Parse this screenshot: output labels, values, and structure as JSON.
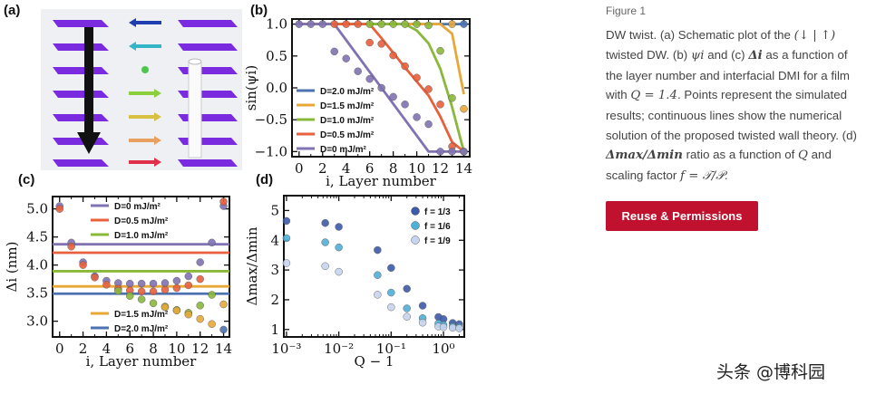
{
  "figure": {
    "panel_labels": [
      "(a)",
      "(b)",
      "(c)",
      "(d)"
    ]
  },
  "caption": {
    "figure_number": "Figure 1",
    "text_parts": [
      "DW twist. (a) Schematic plot of the ",
      "(↓ | ↑)",
      " twisted DW. (b) ",
      "ψi",
      " and (c) ",
      "Δi",
      " as a function of the layer number and interfacial DMI for a film with ",
      "Q = 1.4",
      ". Points represent the simulated results; continuous lines show the numerical solution of the proposed twisted wall theory. (d) ",
      "Δmax/Δmin",
      " ratio as a function of ",
      "Q",
      " and scaling factor ",
      "f = 𝒯/𝒫",
      "."
    ]
  },
  "reuse_button": "Reuse & Permissions",
  "watermark": "头条 @博科园",
  "colors": {
    "D0": "#8172b2",
    "D05": "#e8603c",
    "D10": "#8ab83a",
    "D15": "#e8a838",
    "D20": "#4c72b0",
    "f13": "#3d5aa8",
    "f16": "#4fb0d8",
    "f19": "#c7d4ef",
    "button": "#c0122f",
    "plate": "#8a2be2"
  },
  "chart_data": [
    {
      "id": "b",
      "type": "line",
      "xlabel": "i, Layer number",
      "ylabel": "sin(ψi)",
      "xlim": [
        -0.6,
        14.5
      ],
      "ylim": [
        -1.08,
        1.08
      ],
      "xticks": [
        0,
        2,
        4,
        6,
        8,
        10,
        12,
        14
      ],
      "yticks": [
        -1.0,
        -0.5,
        0.0,
        0.5,
        1.0
      ],
      "ytick_labels": [
        "−1.0",
        "−0.5",
        "0.0",
        "0.5",
        "1.0"
      ],
      "legend_position": "lower-left",
      "series": [
        {
          "name": "D=2.0 mJ/m²",
          "color": "#4c72b0",
          "line_x": [
            0,
            14
          ],
          "line_y": [
            1,
            1
          ],
          "points": [
            [
              14,
              1
            ]
          ]
        },
        {
          "name": "D=1.5 mJ/m²",
          "color": "#e8a838",
          "line_x": [
            0,
            12,
            13,
            14
          ],
          "line_y": [
            1,
            1,
            0.85,
            -0.1
          ],
          "points": [
            [
              13,
              1
            ],
            [
              14,
              -0.33
            ]
          ]
        },
        {
          "name": "D=1.0 mJ/m²",
          "color": "#8ab83a",
          "line_x": [
            0,
            9,
            10,
            11,
            12,
            13,
            14
          ],
          "line_y": [
            1,
            1,
            0.9,
            0.7,
            0.3,
            -0.3,
            -1
          ],
          "points": [
            [
              6,
              1
            ],
            [
              7,
              1
            ],
            [
              8,
              1
            ],
            [
              9,
              1
            ],
            [
              10,
              1
            ],
            [
              11,
              0.98
            ],
            [
              12,
              0.58
            ],
            [
              13,
              -0.16
            ],
            [
              14,
              -1
            ]
          ]
        },
        {
          "name": "D=0.5 mJ/m²",
          "color": "#e8603c",
          "line_x": [
            0,
            6,
            7,
            8,
            9,
            10,
            11,
            12,
            13,
            14
          ],
          "line_y": [
            1,
            1,
            0.78,
            0.55,
            0.32,
            0.1,
            -0.12,
            -0.45,
            -0.85,
            -1
          ],
          "points": [
            [
              3,
              1
            ],
            [
              4,
              1
            ],
            [
              5,
              1
            ],
            [
              6,
              0.71
            ],
            [
              7,
              0.69
            ],
            [
              8,
              0.51
            ],
            [
              9,
              0.34
            ],
            [
              10,
              0.16
            ],
            [
              11,
              -0.02
            ],
            [
              12,
              -0.26
            ],
            [
              13,
              -0.92
            ]
          ]
        },
        {
          "name": "D=0 mJ/m²",
          "color": "#8172b2",
          "line_x": [
            0,
            3,
            11,
            14
          ],
          "line_y": [
            1,
            1,
            -1,
            -1
          ],
          "points": [
            [
              0,
              1
            ],
            [
              1,
              1
            ],
            [
              2,
              1
            ],
            [
              3,
              0.57
            ],
            [
              4,
              0.46
            ],
            [
              5,
              0.26
            ],
            [
              6,
              0.14
            ],
            [
              7,
              0
            ],
            [
              8,
              -0.14
            ],
            [
              9,
              -0.26
            ],
            [
              10,
              -0.46
            ],
            [
              11,
              -0.57
            ],
            [
              12,
              -1
            ],
            [
              13,
              -1
            ],
            [
              14,
              -1
            ]
          ]
        }
      ]
    },
    {
      "id": "c",
      "type": "line",
      "xlabel": "i, Layer number",
      "ylabel": "Δi (nm)",
      "xlim": [
        -0.6,
        14.5
      ],
      "ylim": [
        2.72,
        5.22
      ],
      "xticks": [
        0,
        2,
        4,
        6,
        8,
        10,
        12,
        14
      ],
      "yticks": [
        3.0,
        3.5,
        4.0,
        4.5,
        5.0
      ],
      "ytick_labels": [
        "3.0",
        "3.5",
        "4.0",
        "4.5",
        "5.0"
      ],
      "legend_position": "top-left and bottom-left",
      "series": [
        {
          "name": "D=0 mJ/m²",
          "color": "#8172b2",
          "line_x": [
            -0.6,
            14.5
          ],
          "line_y": [
            4.37,
            4.37
          ],
          "points": [
            [
              0,
              5.05
            ],
            [
              1,
              4.4
            ],
            [
              2,
              4.05
            ],
            [
              3,
              3.8
            ],
            [
              4,
              3.72
            ],
            [
              5,
              3.68
            ],
            [
              6,
              3.67
            ],
            [
              7,
              3.67
            ],
            [
              8,
              3.67
            ],
            [
              9,
              3.68
            ],
            [
              10,
              3.72
            ],
            [
              11,
              3.8
            ],
            [
              12,
              4.05
            ],
            [
              13,
              4.4
            ],
            [
              14,
              5.05
            ]
          ]
        },
        {
          "name": "D=0.5 mJ/m²",
          "color": "#e8603c",
          "line_x": [
            -0.6,
            14.5
          ],
          "line_y": [
            4.22,
            4.22
          ],
          "points": [
            [
              0,
              5.0
            ],
            [
              1,
              4.33
            ],
            [
              2,
              4.0
            ],
            [
              3,
              3.78
            ],
            [
              4,
              3.65
            ],
            [
              5,
              3.58
            ],
            [
              6,
              3.55
            ],
            [
              7,
              3.53
            ],
            [
              8,
              3.53
            ],
            [
              9,
              3.56
            ],
            [
              10,
              3.59
            ],
            [
              11,
              3.64
            ],
            [
              12,
              3.75
            ],
            [
              14,
              5.13
            ]
          ]
        },
        {
          "name": "D=1.0 mJ/m²",
          "color": "#8ab83a",
          "line_x": [
            -0.6,
            14.5
          ],
          "line_y": [
            3.89,
            3.89
          ],
          "points": [
            [
              5,
              3.54
            ],
            [
              6,
              3.45
            ],
            [
              7,
              3.39
            ],
            [
              8,
              3.32
            ],
            [
              9,
              3.26
            ],
            [
              10,
              3.2
            ],
            [
              11,
              3.15
            ],
            [
              12,
              3.28
            ],
            [
              13,
              3.47
            ]
          ]
        },
        {
          "name": "D=1.5 mJ/m²",
          "color": "#e8a838",
          "line_x": [
            -0.6,
            14.5
          ],
          "line_y": [
            3.62,
            3.62
          ],
          "points": [
            [
              9,
              3.25
            ],
            [
              10,
              3.19
            ],
            [
              11,
              3.12
            ],
            [
              12,
              3.04
            ],
            [
              13,
              2.95
            ],
            [
              14,
              3.3
            ]
          ]
        },
        {
          "name": "D=2.0 mJ/m²",
          "color": "#4c72b0",
          "line_x": [
            -0.6,
            14.5
          ],
          "line_y": [
            3.49,
            3.49
          ],
          "points": [
            [
              14,
              2.85
            ]
          ]
        }
      ]
    },
    {
      "id": "d",
      "type": "scatter",
      "xlabel": "Q − 1",
      "ylabel": "Δmax/Δmin",
      "xscale": "log",
      "xlim": [
        0.00089,
        2.5
      ],
      "ylim": [
        0.75,
        5.5
      ],
      "xticks": [
        0.001,
        0.01,
        0.1,
        1
      ],
      "xtick_labels": [
        "10⁻³",
        "10⁻²",
        "10⁻¹",
        "10⁰"
      ],
      "yticks": [
        1,
        2,
        3,
        4,
        5
      ],
      "ytick_labels": [
        "1",
        "2",
        "3",
        "4",
        "5"
      ],
      "legend_position": "top-right",
      "series": [
        {
          "name": "f = 1/3",
          "color": "#3d5aa8",
          "points": [
            [
              0.001,
              4.65
            ],
            [
              0.0055,
              4.58
            ],
            [
              0.01,
              4.45
            ],
            [
              0.055,
              3.67
            ],
            [
              0.1,
              3.07
            ],
            [
              0.2,
              2.37
            ],
            [
              0.4,
              1.8
            ],
            [
              0.8,
              1.42
            ],
            [
              1.0,
              1.35
            ],
            [
              1.5,
              1.22
            ],
            [
              2.0,
              1.18
            ]
          ]
        },
        {
          "name": "f = 1/6",
          "color": "#4fb0d8",
          "points": [
            [
              0.001,
              4.07
            ],
            [
              0.0055,
              3.93
            ],
            [
              0.01,
              3.76
            ],
            [
              0.055,
              2.83
            ],
            [
              0.1,
              2.24
            ],
            [
              0.2,
              1.71
            ],
            [
              0.4,
              1.38
            ],
            [
              0.8,
              1.2
            ],
            [
              1.0,
              1.15
            ],
            [
              1.5,
              1.1
            ],
            [
              2.0,
              1.08
            ]
          ]
        },
        {
          "name": "f = 1/9",
          "color": "#c7d4ef",
          "points": [
            [
              0.001,
              3.23
            ],
            [
              0.0055,
              3.13
            ],
            [
              0.01,
              2.94
            ],
            [
              0.055,
              2.17
            ],
            [
              0.1,
              1.75
            ],
            [
              0.2,
              1.43
            ],
            [
              0.4,
              1.23
            ],
            [
              0.8,
              1.1
            ],
            [
              1.0,
              1.08
            ],
            [
              1.5,
              1.06
            ],
            [
              2.0,
              1.04
            ]
          ]
        }
      ]
    }
  ]
}
